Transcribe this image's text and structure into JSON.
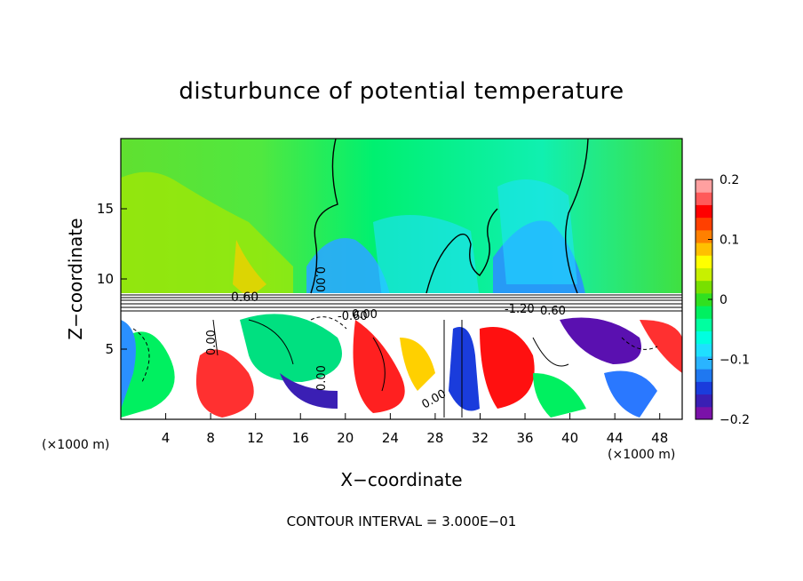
{
  "chart_data": {
    "type": "heatmap",
    "title": "disturbunce of potential temperature",
    "xlabel": "X−coordinate",
    "ylabel": "Z−coordinate",
    "x_unit": "(×1000 m)",
    "y_unit": "(×1000 m)",
    "xlim": [
      0,
      50
    ],
    "ylim": [
      0,
      20
    ],
    "x_ticks": [
      "4",
      "8",
      "12",
      "16",
      "20",
      "24",
      "28",
      "32",
      "36",
      "40",
      "44",
      "48"
    ],
    "y_ticks": [
      "5",
      "10",
      "15"
    ],
    "colorbar": {
      "min": -0.2,
      "max": 0.2,
      "tick_labels": [
        "0.2",
        "0.1",
        "0",
        "−0.1",
        "−0.2"
      ],
      "colors": [
        "#7a12a8",
        "#3a1fb4",
        "#1a3cdc",
        "#1f78f0",
        "#2ab4ff",
        "#1fe0ff",
        "#00ffe0",
        "#00ffa0",
        "#00f060",
        "#30e020",
        "#78e000",
        "#c8f000",
        "#ffff00",
        "#ffc000",
        "#ff8000",
        "#ff4000",
        "#ff0000",
        "#ff5a5a",
        "#ffa0a0"
      ]
    },
    "contour_labels": [
      "0.00",
      "0.60",
      "0.00",
      "-0.60",
      "-1.20",
      "0.60",
      "0.00",
      "0.00",
      "0.00"
    ],
    "footer": "CONTOUR INTERVAL = 3.000E−01"
  }
}
